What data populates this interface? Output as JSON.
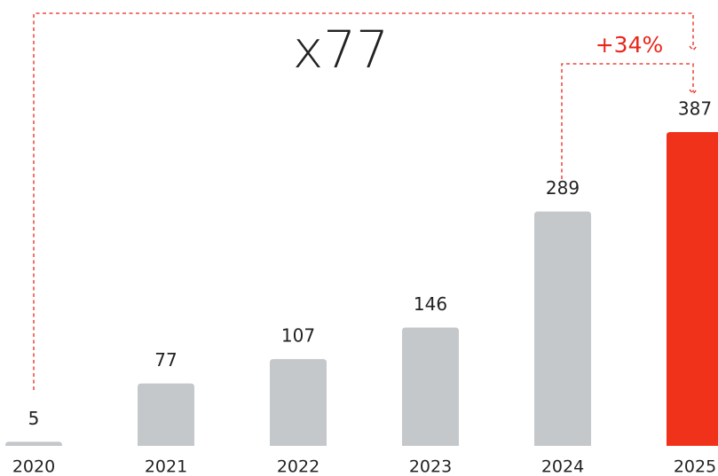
{
  "chart_data": {
    "type": "bar",
    "categories": [
      "2020",
      "2021",
      "2022",
      "2023",
      "2024",
      "2025"
    ],
    "values": [
      5,
      77,
      107,
      146,
      289,
      387
    ],
    "colors": [
      "#c4c8cb",
      "#c4c8cb",
      "#c4c8cb",
      "#c4c8cb",
      "#c4c8cb",
      "#f0321b"
    ],
    "annotations": [
      "x77",
      "+34%"
    ],
    "annotation_colors": [
      "#222222",
      "#e8261a"
    ]
  }
}
